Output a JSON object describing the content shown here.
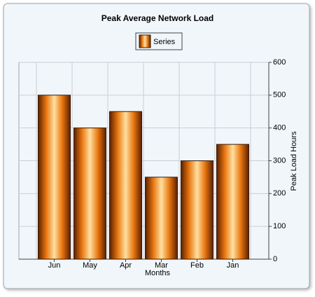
{
  "chart_data": {
    "type": "bar",
    "title": "Peak Average Network Load",
    "categories": [
      "Jun",
      "May",
      "Apr",
      "Mar",
      "Feb",
      "Jan"
    ],
    "series": [
      {
        "name": "Series",
        "color": "#e8750f",
        "values": [
          500,
          400,
          450,
          250,
          300,
          350
        ]
      }
    ],
    "x_label": "Months",
    "y_label": "Peak Load Hours",
    "ylim": [
      0,
      600
    ],
    "yticks": [
      0,
      100,
      200,
      300,
      400,
      500,
      600
    ],
    "grid": true,
    "y_axis_side": "right"
  }
}
